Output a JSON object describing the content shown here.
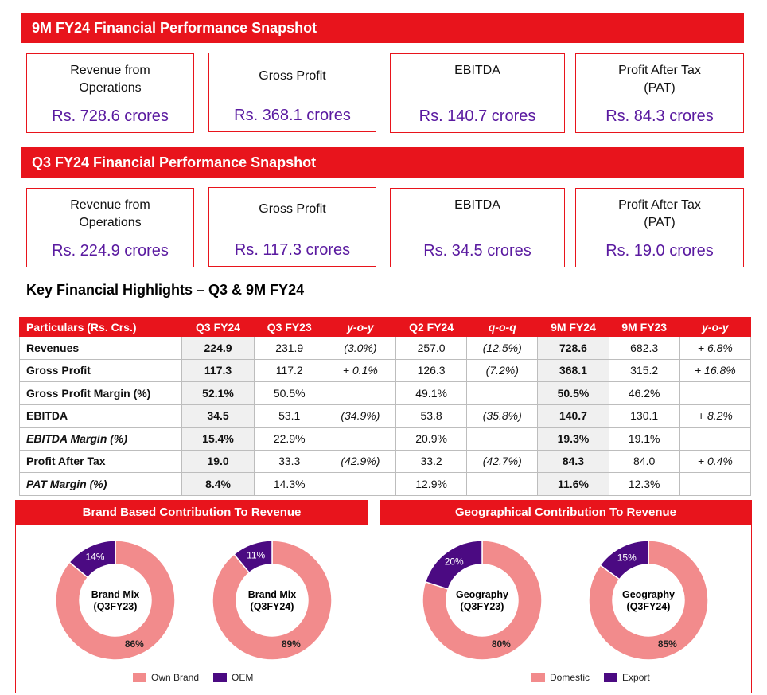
{
  "snapshot_9m": {
    "title": "9M FY24 Financial Performance Snapshot",
    "kpis": [
      {
        "label": "Revenue from\nOperations",
        "value": "Rs. 728.6 crores"
      },
      {
        "label": "Gross Profit",
        "value": "Rs. 368.1 crores"
      },
      {
        "label": "EBITDA",
        "value": "Rs. 140.7 crores"
      },
      {
        "label": "Profit After Tax\n(PAT)",
        "value": "Rs. 84.3 crores"
      }
    ]
  },
  "snapshot_q3": {
    "title": "Q3 FY24 Financial Performance Snapshot",
    "kpis": [
      {
        "label": "Revenue from\nOperations",
        "value": "Rs. 224.9 crores"
      },
      {
        "label": "Gross Profit",
        "value": "Rs. 117.3 crores"
      },
      {
        "label": "EBITDA",
        "value": "Rs. 34.5 crores"
      },
      {
        "label": "Profit After Tax\n(PAT)",
        "value": "Rs. 19.0 crores"
      }
    ]
  },
  "highlights": {
    "title": "Key Financial Highlights – Q3 & 9M FY24",
    "headers": [
      "Particulars (Rs. Crs.)",
      "Q3 FY24",
      "Q3 FY23",
      "y-o-y",
      "Q2 FY24",
      "q-o-q",
      "9M FY24",
      "9M FY23",
      "y-o-y"
    ],
    "rows": [
      [
        "Revenues",
        "224.9",
        "231.9",
        "(3.0%)",
        "257.0",
        "(12.5%)",
        "728.6",
        "682.3",
        "+ 6.8%"
      ],
      [
        "Gross Profit",
        "117.3",
        "117.2",
        "+ 0.1%",
        "126.3",
        "(7.2%)",
        "368.1",
        "315.2",
        "+ 16.8%"
      ],
      [
        "Gross Profit Margin (%)",
        "52.1%",
        "50.5%",
        "",
        "49.1%",
        "",
        "50.5%",
        "46.2%",
        ""
      ],
      [
        "EBITDA",
        "34.5",
        "53.1",
        "(34.9%)",
        "53.8",
        "(35.8%)",
        "140.7",
        "130.1",
        "+ 8.2%"
      ],
      [
        "EBITDA Margin (%)",
        "15.4%",
        "22.9%",
        "",
        "20.9%",
        "",
        "19.3%",
        "19.1%",
        ""
      ],
      [
        "Profit After Tax",
        "19.0",
        "33.3",
        "(42.9%)",
        "33.2",
        "(42.7%)",
        "84.3",
        "84.0",
        "+ 0.4%"
      ],
      [
        "PAT Margin (%)",
        "8.4%",
        "14.3%",
        "",
        "12.9%",
        "",
        "11.6%",
        "12.3%",
        ""
      ]
    ]
  },
  "colors": {
    "accent": "#e8141c",
    "value_text": "#5a1aa0",
    "slice_major": "#f28b8c",
    "slice_minor": "#4b0a82"
  },
  "chart_data": [
    {
      "type": "pie",
      "panel": "Brand Based Contribution To Revenue",
      "center_label": [
        "Brand Mix",
        "(Q3FY23)"
      ],
      "categories": [
        "Own Brand",
        "OEM"
      ],
      "values": [
        86,
        14
      ],
      "labels": [
        "86%",
        "14%"
      ]
    },
    {
      "type": "pie",
      "panel": "Brand Based Contribution To Revenue",
      "center_label": [
        "Brand Mix",
        "(Q3FY24)"
      ],
      "categories": [
        "Own Brand",
        "OEM"
      ],
      "values": [
        89,
        11
      ],
      "labels": [
        "89%",
        "11%"
      ]
    },
    {
      "type": "pie",
      "panel": "Geographical Contribution To Revenue",
      "center_label": [
        "Geography",
        "(Q3FY23)"
      ],
      "categories": [
        "Domestic",
        "Export"
      ],
      "values": [
        80,
        20
      ],
      "labels": [
        "80%",
        "20%"
      ]
    },
    {
      "type": "pie",
      "panel": "Geographical Contribution To Revenue",
      "center_label": [
        "Geography",
        "(Q3FY24)"
      ],
      "categories": [
        "Domestic",
        "Export"
      ],
      "values": [
        85,
        15
      ],
      "labels": [
        "85%",
        "15%"
      ]
    }
  ],
  "panels": {
    "brand": {
      "title": "Brand Based Contribution To Revenue",
      "legend": [
        "Own Brand",
        "OEM"
      ]
    },
    "geo": {
      "title": "Geographical Contribution To Revenue",
      "legend": [
        "Domestic",
        "Export"
      ]
    }
  }
}
